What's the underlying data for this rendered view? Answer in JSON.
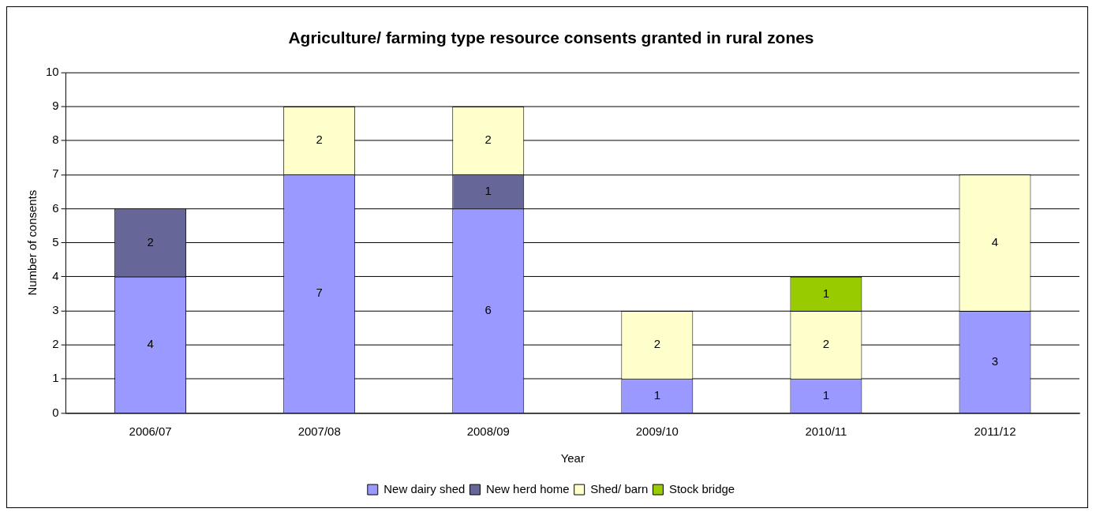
{
  "chart_data": {
    "type": "bar",
    "title": "Agriculture/ farming type resource consents granted in rural zones",
    "xlabel": "Year",
    "ylabel": "Number of consents",
    "categories": [
      "2006/07",
      "2007/08",
      "2008/09",
      "2009/10",
      "2010/11",
      "2011/12"
    ],
    "stacked": true,
    "ylim": [
      0,
      10
    ],
    "yticks": [
      0,
      1,
      2,
      3,
      4,
      5,
      6,
      7,
      8,
      9,
      10
    ],
    "grid": "y",
    "legend": "bottom",
    "data_labels": true,
    "series": [
      {
        "name": "New dairy shed",
        "color": "#9999ff",
        "values": [
          4,
          7,
          6,
          1,
          1,
          3
        ]
      },
      {
        "name": "New herd home",
        "color": "#666699",
        "values": [
          2,
          null,
          1,
          null,
          null,
          null
        ]
      },
      {
        "name": "Shed/ barn",
        "color": "#ffffcc",
        "values": [
          null,
          2,
          2,
          2,
          2,
          4
        ]
      },
      {
        "name": "Stock bridge",
        "color": "#99cc00",
        "values": [
          null,
          null,
          null,
          null,
          1,
          null
        ]
      }
    ]
  }
}
